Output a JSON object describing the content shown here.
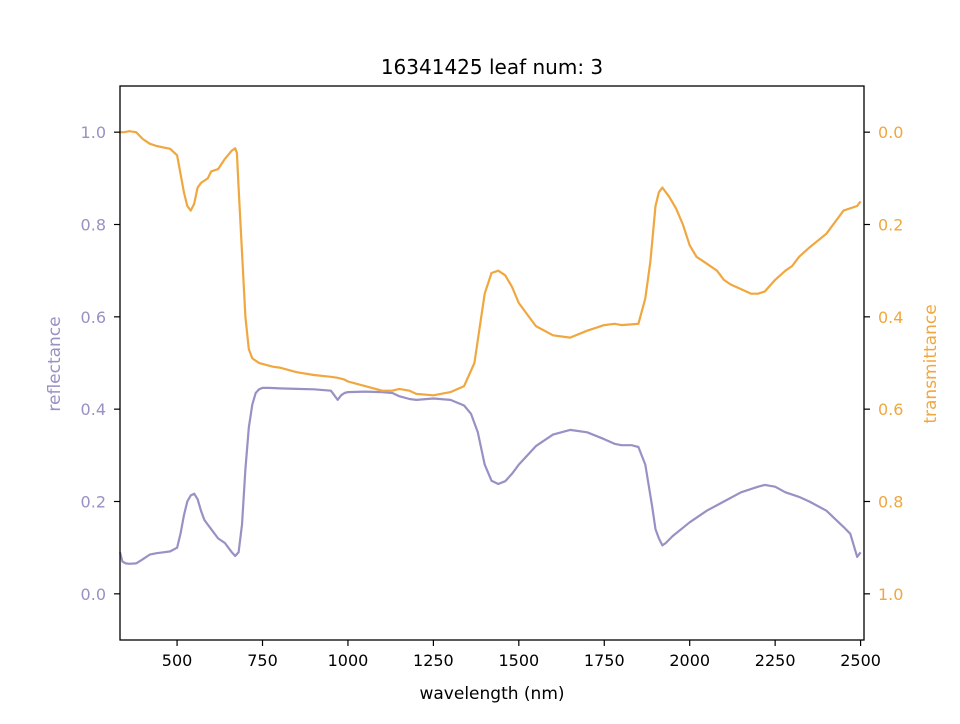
{
  "chart_data": {
    "type": "line",
    "title": "16341425 leaf num: 3",
    "xlabel": "wavelength (nm)",
    "ylabel_left": "reflectance",
    "ylabel_right": "transmittance",
    "xlim": [
      333,
      2510
    ],
    "ylim_left": [
      -0.1,
      1.1
    ],
    "ylim_right": [
      1.1,
      -0.1
    ],
    "right_axis_inverted": true,
    "x_ticks": [
      500,
      750,
      1000,
      1250,
      1500,
      1750,
      2000,
      2250,
      2500
    ],
    "y_ticks_left": [
      0.0,
      0.2,
      0.4,
      0.6,
      0.8,
      1.0
    ],
    "y_ticks_right": [
      0.0,
      0.2,
      0.4,
      0.6,
      0.8,
      1.0
    ],
    "grid": false,
    "colors": {
      "reflectance": "#9990c4",
      "transmittance": "#f0a73f",
      "axis": "#000000"
    },
    "series": [
      {
        "key": "reflectance",
        "axis": "left",
        "x": [
          333,
          340,
          350,
          360,
          380,
          400,
          420,
          440,
          460,
          480,
          500,
          510,
          520,
          530,
          540,
          550,
          560,
          570,
          580,
          590,
          600,
          620,
          640,
          660,
          670,
          680,
          690,
          700,
          710,
          720,
          730,
          740,
          750,
          770,
          800,
          850,
          900,
          950,
          970,
          980,
          990,
          1000,
          1050,
          1100,
          1130,
          1150,
          1180,
          1200,
          1250,
          1300,
          1340,
          1360,
          1380,
          1400,
          1420,
          1440,
          1460,
          1480,
          1500,
          1550,
          1600,
          1650,
          1700,
          1750,
          1780,
          1800,
          1830,
          1850,
          1870,
          1890,
          1900,
          1910,
          1920,
          1930,
          1950,
          2000,
          2050,
          2100,
          2150,
          2200,
          2220,
          2250,
          2280,
          2300,
          2320,
          2350,
          2400,
          2450,
          2470,
          2490,
          2500
        ],
        "y": [
          0.09,
          0.07,
          0.066,
          0.065,
          0.066,
          0.075,
          0.085,
          0.088,
          0.09,
          0.092,
          0.1,
          0.13,
          0.17,
          0.2,
          0.213,
          0.217,
          0.205,
          0.18,
          0.16,
          0.15,
          0.14,
          0.12,
          0.11,
          0.09,
          0.082,
          0.09,
          0.15,
          0.27,
          0.36,
          0.41,
          0.435,
          0.443,
          0.446,
          0.446,
          0.445,
          0.444,
          0.443,
          0.44,
          0.42,
          0.43,
          0.435,
          0.437,
          0.438,
          0.437,
          0.435,
          0.428,
          0.422,
          0.42,
          0.423,
          0.42,
          0.408,
          0.39,
          0.35,
          0.28,
          0.245,
          0.238,
          0.244,
          0.26,
          0.28,
          0.32,
          0.345,
          0.355,
          0.35,
          0.335,
          0.325,
          0.322,
          0.322,
          0.318,
          0.28,
          0.19,
          0.14,
          0.12,
          0.105,
          0.11,
          0.125,
          0.155,
          0.18,
          0.2,
          0.22,
          0.232,
          0.236,
          0.232,
          0.22,
          0.215,
          0.21,
          0.2,
          0.18,
          0.145,
          0.13,
          0.08,
          0.09
        ]
      },
      {
        "key": "transmittance",
        "axis": "right",
        "x": [
          333,
          345,
          360,
          380,
          400,
          420,
          440,
          460,
          480,
          500,
          510,
          520,
          530,
          540,
          550,
          560,
          570,
          580,
          590,
          600,
          620,
          640,
          660,
          670,
          675,
          680,
          690,
          700,
          710,
          720,
          730,
          740,
          750,
          780,
          800,
          850,
          900,
          950,
          970,
          990,
          1000,
          1050,
          1100,
          1130,
          1150,
          1180,
          1200,
          1250,
          1300,
          1340,
          1370,
          1400,
          1420,
          1440,
          1460,
          1480,
          1500,
          1550,
          1600,
          1650,
          1700,
          1750,
          1780,
          1800,
          1850,
          1870,
          1885,
          1900,
          1910,
          1920,
          1940,
          1960,
          1980,
          2000,
          2020,
          2050,
          2080,
          2100,
          2120,
          2150,
          2180,
          2200,
          2220,
          2250,
          2280,
          2300,
          2320,
          2350,
          2400,
          2450,
          2490,
          2500
        ],
        "y": [
          0.0,
          0.0,
          -0.002,
          0.0,
          0.015,
          0.025,
          0.03,
          0.033,
          0.036,
          0.05,
          0.09,
          0.13,
          0.16,
          0.17,
          0.155,
          0.12,
          0.11,
          0.105,
          0.1,
          0.085,
          0.08,
          0.058,
          0.04,
          0.035,
          0.045,
          0.12,
          0.26,
          0.4,
          0.47,
          0.49,
          0.495,
          0.5,
          0.502,
          0.508,
          0.51,
          0.52,
          0.526,
          0.53,
          0.532,
          0.536,
          0.54,
          0.55,
          0.56,
          0.56,
          0.556,
          0.56,
          0.567,
          0.57,
          0.563,
          0.55,
          0.5,
          0.35,
          0.305,
          0.3,
          0.31,
          0.335,
          0.37,
          0.42,
          0.44,
          0.445,
          0.43,
          0.418,
          0.415,
          0.418,
          0.415,
          0.36,
          0.28,
          0.16,
          0.13,
          0.12,
          0.14,
          0.165,
          0.2,
          0.245,
          0.27,
          0.285,
          0.3,
          0.32,
          0.33,
          0.34,
          0.35,
          0.35,
          0.345,
          0.32,
          0.3,
          0.29,
          0.27,
          0.25,
          0.22,
          0.17,
          0.16,
          0.15
        ]
      }
    ]
  }
}
